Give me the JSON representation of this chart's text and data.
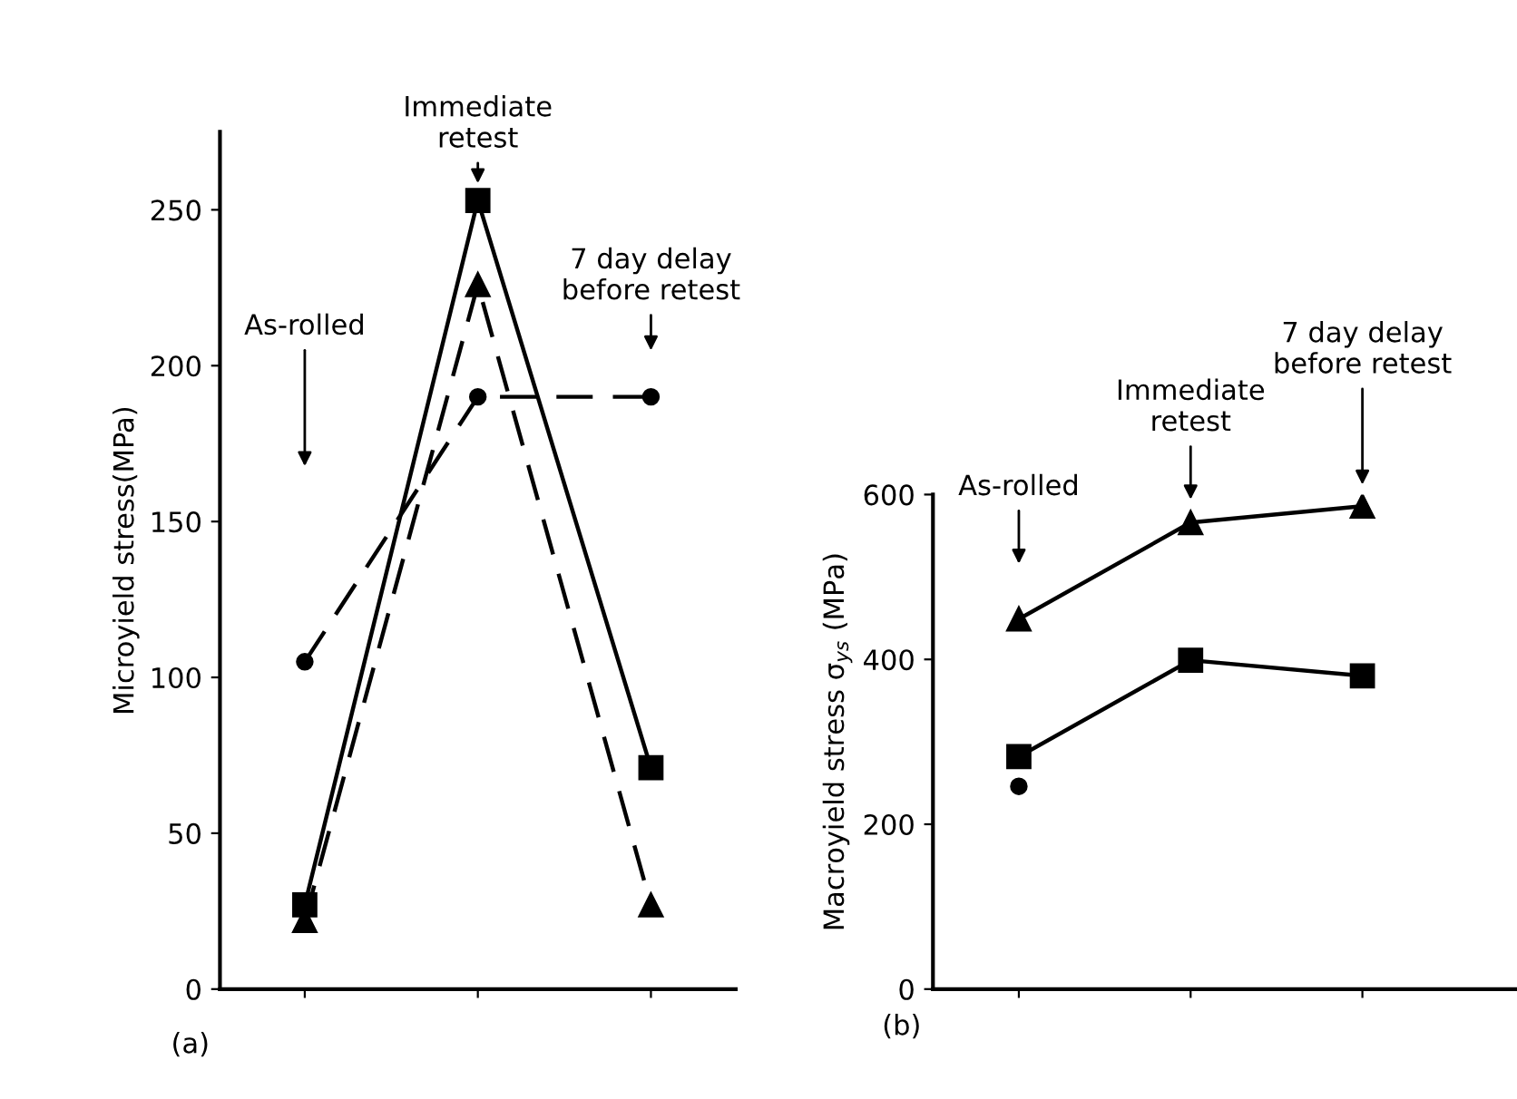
{
  "chart_data": [
    {
      "type": "line",
      "ylabel": "Microyield stress(MPa)",
      "categories": [
        null,
        null,
        null
      ],
      "ylim": [
        0,
        275
      ],
      "yticks": [
        0,
        50,
        100,
        150,
        200,
        250
      ],
      "grid": false,
      "legend": false,
      "series": [
        {
          "color": "#000000",
          "marker": "square",
          "line_style": "solid",
          "values": [
            27,
            253,
            71
          ]
        },
        {
          "color": "#000000",
          "marker": "triangle",
          "line_style": "dashed",
          "values": [
            22,
            226,
            27
          ]
        },
        {
          "color": "#000000",
          "marker": "circle",
          "line_style": "dashed",
          "values": [
            105,
            190,
            190
          ]
        }
      ],
      "annotations": [
        "As-rolled",
        "Immediate\nretest",
        "7 day delay\nbefore retest",
        "(a)"
      ]
    },
    {
      "type": "line",
      "ylabel": "Macroyield stress σ$_{ys}$ (MPa)",
      "categories": [
        null,
        null,
        null
      ],
      "ylim": [
        0,
        600
      ],
      "yticks": [
        0,
        200,
        400,
        600
      ],
      "grid": false,
      "legend": false,
      "series": [
        {
          "color": "#000000",
          "marker": "triangle",
          "line_style": "solid",
          "values": [
            449,
            566,
            586
          ]
        },
        {
          "color": "#000000",
          "marker": "square",
          "line_style": "solid",
          "values": [
            282,
            399,
            380
          ]
        },
        {
          "type": "scatter",
          "color": "#000000",
          "marker": "circle",
          "values": [
            246,
            null,
            null
          ]
        }
      ],
      "annotations": [
        "As-rolled",
        "Immediate\nretest",
        "7 day delay\nbefore retest",
        "(b)"
      ]
    }
  ]
}
